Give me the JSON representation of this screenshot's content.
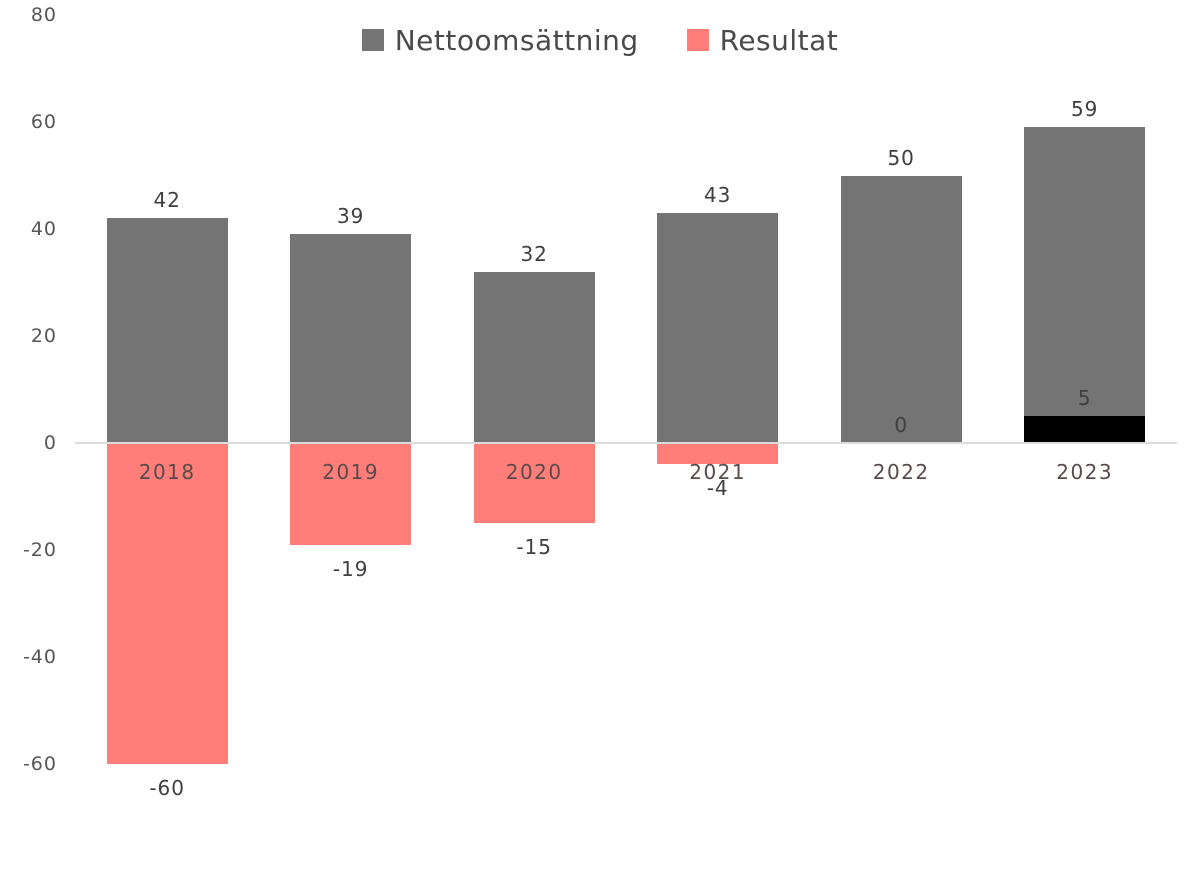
{
  "chart_data": {
    "type": "bar",
    "title": "",
    "categories": [
      "2018",
      "2019",
      "2020",
      "2021",
      "2022",
      "2023"
    ],
    "series": [
      {
        "name": "Nettoomsättning",
        "color": "#747474",
        "values": [
          42,
          39,
          32,
          43,
          50,
          59
        ],
        "value_labels": [
          "42",
          "39",
          "32",
          "43",
          "50",
          "59"
        ]
      },
      {
        "name": "Resultat",
        "color": "#FF7E79",
        "positive_color": "#000000",
        "values": [
          -60,
          -19,
          -15,
          -4,
          0,
          5
        ],
        "value_labels": [
          "-60",
          "-19",
          "-15",
          "-4",
          "0",
          "5"
        ]
      }
    ],
    "y_ticks": [
      80,
      60,
      40,
      20,
      0,
      -20,
      -40,
      -60
    ],
    "ylim": [
      -60,
      80
    ],
    "xlabel": "",
    "ylabel": "",
    "grid": false,
    "legend_position": "top",
    "value_labels_shown": true
  }
}
